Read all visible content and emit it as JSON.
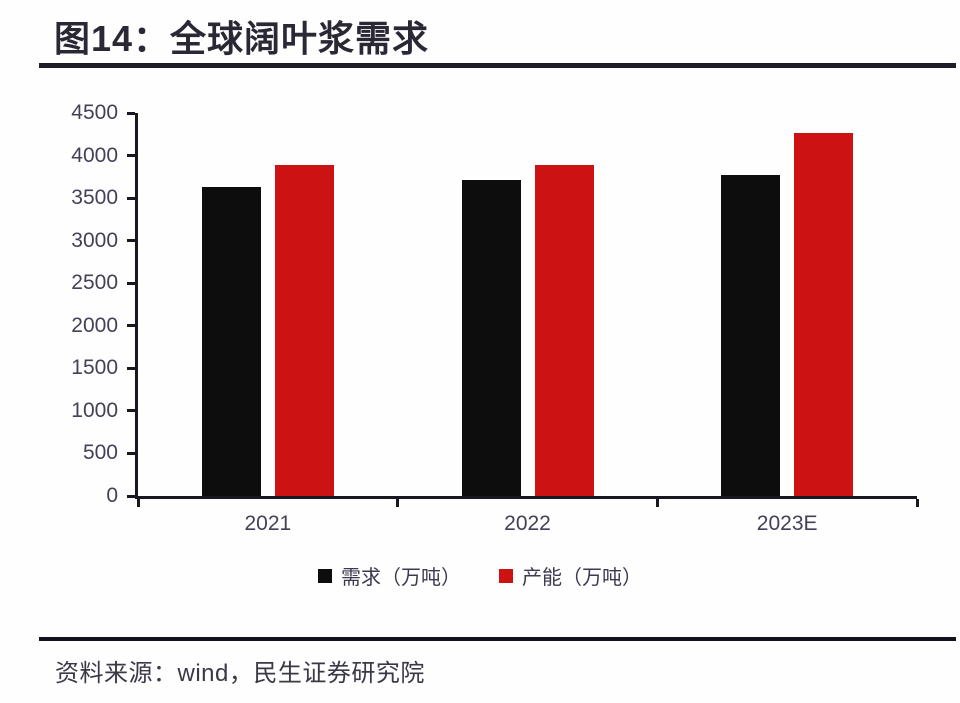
{
  "header": {
    "title": "图14：全球阔叶浆需求"
  },
  "footer": {
    "source": "资料来源：wind，民生证券研究院"
  },
  "colors": {
    "demand": "#0e0d0d",
    "capacity": "#cc1212",
    "axis": "#191820",
    "tick_label": "#453f58",
    "title_text": "#2a2834",
    "rule": "#1d1c27",
    "source_text": "#3c3846"
  },
  "chart_data": {
    "type": "bar",
    "title": "全球阔叶浆需求",
    "categories": [
      "2021",
      "2022",
      "2023E"
    ],
    "series": [
      {
        "key": "demand",
        "name": "需求（万吨）",
        "color": "#0e0d0d",
        "values": [
          3630,
          3710,
          3770
        ]
      },
      {
        "key": "capacity",
        "name": "产能（万吨）",
        "color": "#cc1212",
        "values": [
          3890,
          3890,
          4270
        ]
      }
    ],
    "xlabel": "",
    "ylabel": "",
    "ylim": [
      0,
      4500
    ],
    "ytick_step": 500,
    "grid": false,
    "legend_position": "bottom"
  }
}
